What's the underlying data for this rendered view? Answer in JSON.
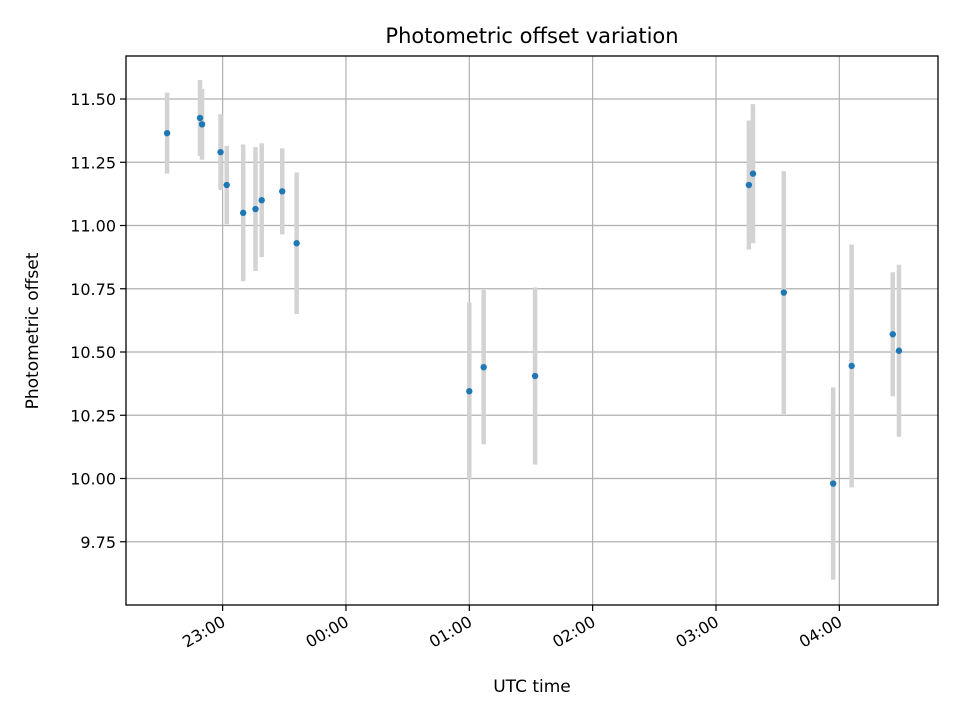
{
  "chart_data": {
    "type": "scatter",
    "title": "Photometric offset variation",
    "xlabel": "UTC time",
    "ylabel": "Photometric offset",
    "xlim": [
      "22:13",
      "04:48"
    ],
    "ylim": [
      9.5,
      11.67
    ],
    "x_ticks": [
      "23:00",
      "00:00",
      "01:00",
      "02:00",
      "03:00",
      "04:00"
    ],
    "y_ticks": [
      9.75,
      10.0,
      10.25,
      10.5,
      10.75,
      11.0,
      11.25,
      11.5
    ],
    "y_tick_labels": [
      "9.75",
      "10.00",
      "10.25",
      "10.50",
      "10.75",
      "11.00",
      "11.25",
      "11.50"
    ],
    "grid": true,
    "error_bars": true,
    "colors": {
      "points": "#1f77b4",
      "error_bars": "#d3d3d3",
      "grid": "#b0b0b0"
    },
    "points": [
      {
        "x": "22:33",
        "y": 11.365,
        "err": 0.16
      },
      {
        "x": "22:49",
        "y": 11.425,
        "err": 0.15
      },
      {
        "x": "22:50",
        "y": 11.4,
        "err": 0.14
      },
      {
        "x": "22:59",
        "y": 11.29,
        "err": 0.15
      },
      {
        "x": "23:02",
        "y": 11.16,
        "err": 0.155
      },
      {
        "x": "23:10",
        "y": 11.05,
        "err": 0.27
      },
      {
        "x": "23:16",
        "y": 11.065,
        "err": 0.245
      },
      {
        "x": "23:19",
        "y": 11.1,
        "err": 0.225
      },
      {
        "x": "23:29",
        "y": 11.135,
        "err": 0.17
      },
      {
        "x": "23:36",
        "y": 10.93,
        "err": 0.28
      },
      {
        "x": "01:00",
        "y": 10.345,
        "err": 0.35
      },
      {
        "x": "01:07",
        "y": 10.44,
        "err": 0.305
      },
      {
        "x": "01:32",
        "y": 10.405,
        "err": 0.35
      },
      {
        "x": "03:16",
        "y": 11.16,
        "err": 0.255
      },
      {
        "x": "03:18",
        "y": 11.205,
        "err": 0.275
      },
      {
        "x": "03:33",
        "y": 10.735,
        "err": 0.48
      },
      {
        "x": "03:57",
        "y": 9.98,
        "err": 0.38
      },
      {
        "x": "04:06",
        "y": 10.445,
        "err": 0.48
      },
      {
        "x": "04:26",
        "y": 10.57,
        "err": 0.245
      },
      {
        "x": "04:29",
        "y": 10.505,
        "err": 0.34
      }
    ]
  }
}
